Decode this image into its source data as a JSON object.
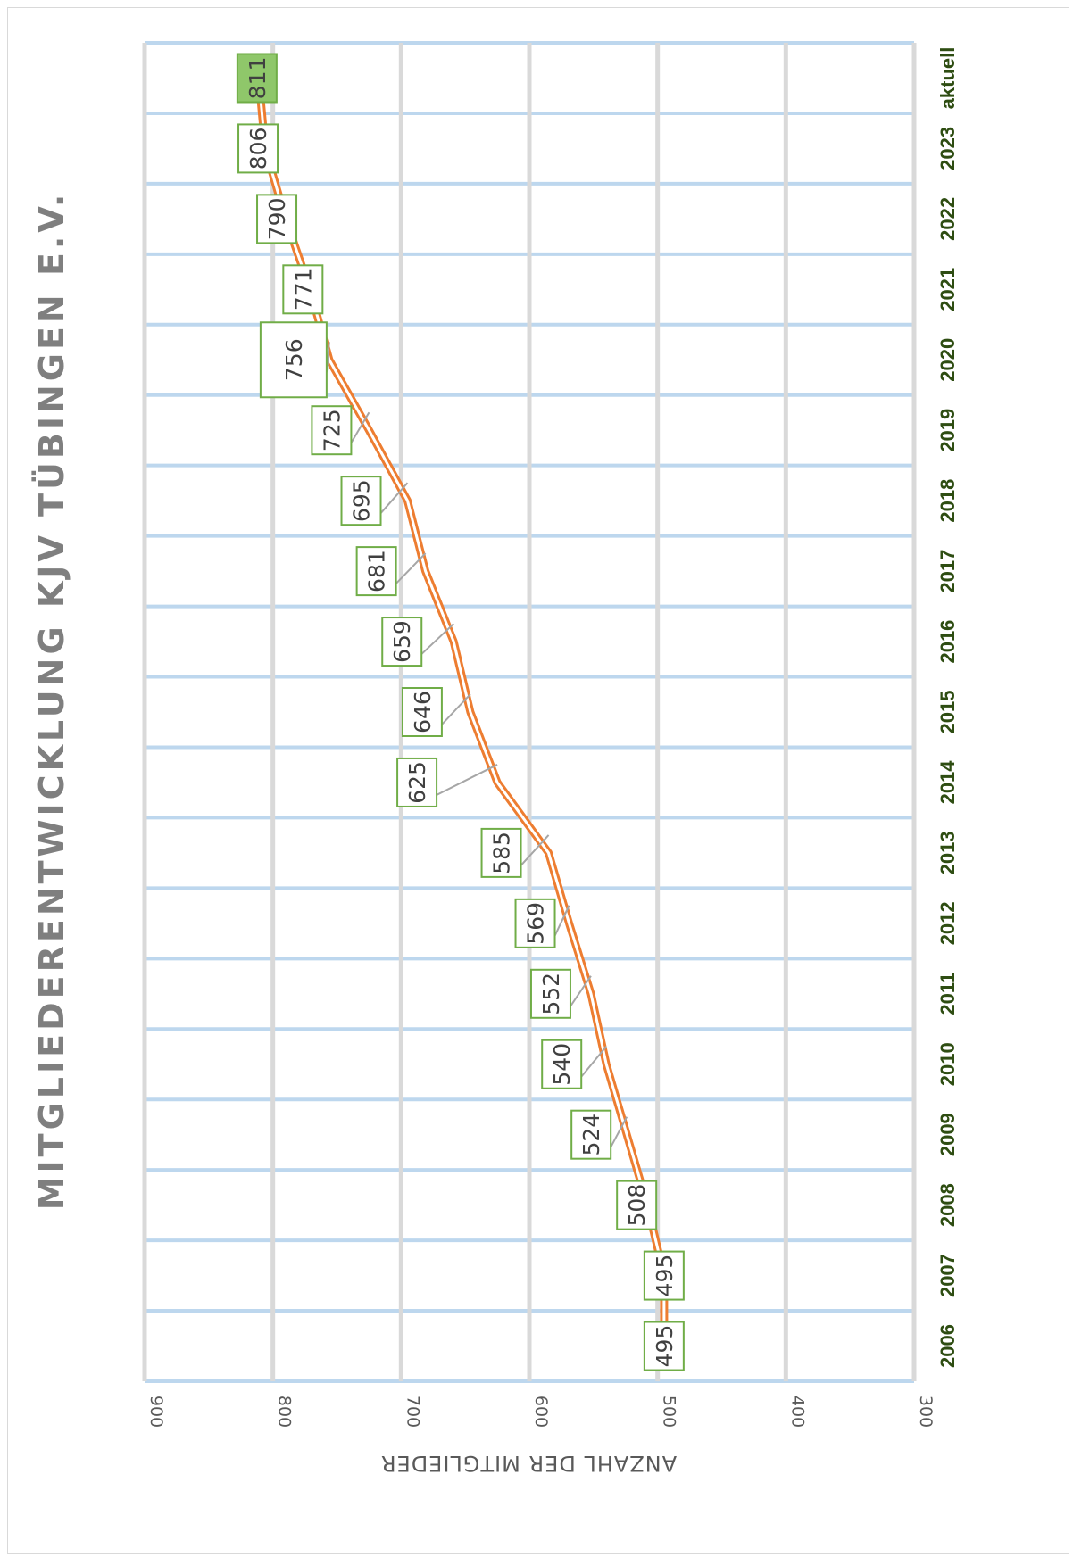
{
  "chart_data": {
    "type": "line",
    "title": "MITGLIEDERENTWICKLUNG KJV TÜBINGEN E.V.",
    "ylabel": "ANZAHL DER MITGLIEDER",
    "categories": [
      "2006",
      "2007",
      "2008",
      "2009",
      "2010",
      "2011",
      "2012",
      "2013",
      "2014",
      "2015",
      "2016",
      "2017",
      "2018",
      "2019",
      "2020",
      "2021",
      "2022",
      "2023",
      "aktuell"
    ],
    "series": [
      {
        "values": [
          495,
          495,
          508,
          524,
          540,
          552,
          569,
          585,
          625,
          646,
          659,
          681,
          695,
          725,
          756,
          771,
          790,
          806,
          811
        ]
      }
    ],
    "data_labels": [
      "495",
      "495",
      "508",
      "524",
      "540",
      "552",
      "569",
      "585",
      "625",
      "646",
      "659",
      "681",
      "695",
      "725",
      "756",
      "771",
      "790",
      "806",
      "811"
    ],
    "yticks": [
      "300",
      "400",
      "500",
      "600",
      "700",
      "800",
      "900"
    ],
    "ylim": [
      300,
      900
    ],
    "grid": true,
    "orientation": "rotated 90° (value axis horizontal, categories vertical)",
    "colors": {
      "line": "#ed7d31",
      "label_border": "#70ad47",
      "highlight_label_fill": "#8fc76a",
      "grid_major": "#d9d9d9",
      "grid_category": "#bdd7ee",
      "category_text": "#2e4d12"
    }
  }
}
